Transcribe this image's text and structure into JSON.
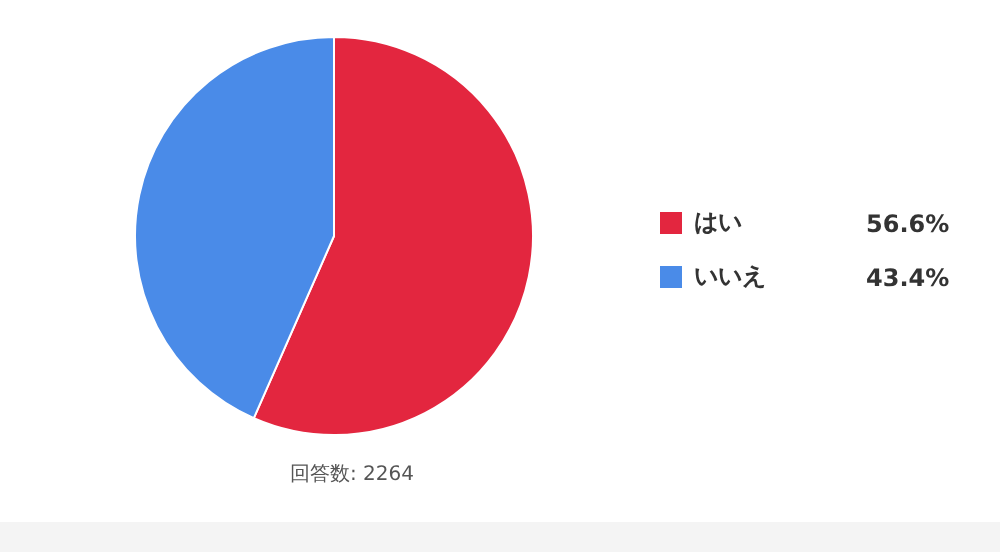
{
  "chart_data": {
    "type": "pie",
    "categories": [
      "はい",
      "いいえ"
    ],
    "values": [
      56.6,
      43.4
    ],
    "colors": [
      "#e3263f",
      "#4a8be8"
    ],
    "value_labels": [
      "56.6%",
      "43.4%"
    ],
    "legend": "right",
    "annotations": [
      "回答数: 2264"
    ]
  }
}
